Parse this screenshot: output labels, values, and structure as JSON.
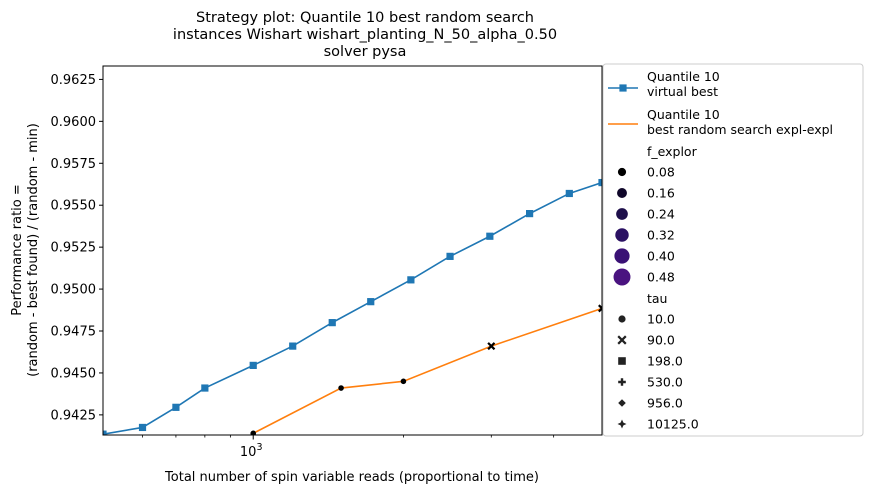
{
  "chart_data": {
    "type": "line",
    "title": [
      "Strategy plot: Quantile 10 best random search",
      "instances Wishart wishart_planting_N_50_alpha_0.50",
      "solver pysa"
    ],
    "xlabel": "Total number of spin variable reads (proportional to time)",
    "ylabel": [
      "Performance ratio =",
      "(random - best found) / (random - min)"
    ],
    "x_scale": "log",
    "xlim": [
      500,
      5000
    ],
    "ylim": [
      0.9413,
      0.9633
    ],
    "x_major_ticks": [
      {
        "value": 1000,
        "base": "10",
        "exp": "3"
      }
    ],
    "x_minor_ticks": [
      600,
      700,
      800,
      900,
      2000,
      3000,
      4000
    ],
    "y_ticks": [
      0.9425,
      0.945,
      0.9475,
      0.95,
      0.9525,
      0.955,
      0.9575,
      0.96,
      0.9625
    ],
    "y_tick_labels": [
      "0.9425",
      "0.9450",
      "0.9475",
      "0.9500",
      "0.9525",
      "0.9550",
      "0.9575",
      "0.9600",
      "0.9625"
    ],
    "series": [
      {
        "name": "Quantile 10\n virtual best",
        "color": "#1f77b4",
        "marker": "square",
        "x": [
          500,
          600,
          700,
          800,
          1000,
          1200,
          1440,
          1720,
          2070,
          2480,
          2980,
          3580,
          4300,
          5000
        ],
        "y": [
          0.94135,
          0.94175,
          0.94295,
          0.9441,
          0.94545,
          0.9466,
          0.948,
          0.94925,
          0.95055,
          0.95195,
          0.95315,
          0.9545,
          0.9557,
          0.95635
        ]
      },
      {
        "name": "Quantile 10\n best random search expl-expl",
        "color": "#ff7f0e",
        "marker": "none",
        "x": [
          1000,
          1500,
          2000,
          3000,
          5000
        ],
        "y": [
          0.9414,
          0.9441,
          0.9445,
          0.9466,
          0.94885
        ]
      }
    ],
    "scatter_points": [
      {
        "x": 1000,
        "y": 0.9414,
        "marker": "circle",
        "f_explor": 0.08
      },
      {
        "x": 1500,
        "y": 0.9441,
        "marker": "circle",
        "f_explor": 0.08
      },
      {
        "x": 2000,
        "y": 0.9445,
        "marker": "circle",
        "f_explor": 0.08
      },
      {
        "x": 3000,
        "y": 0.9466,
        "marker": "x",
        "f_explor": 0.08
      },
      {
        "x": 5000,
        "y": 0.94885,
        "marker": "x",
        "f_explor": 0.08
      }
    ],
    "legend": {
      "placement": "outside-right",
      "f_explor_title": "f_explor",
      "f_explor_entries": [
        {
          "label": "0.08",
          "color": "#000000",
          "size": 0.08
        },
        {
          "label": "0.16",
          "color": "#10072a",
          "size": 0.16
        },
        {
          "label": "0.24",
          "color": "#1e0f4a",
          "size": 0.24
        },
        {
          "label": "0.32",
          "color": "#2b1163",
          "size": 0.32
        },
        {
          "label": "0.40",
          "color": "#3a1175",
          "size": 0.4
        },
        {
          "label": "0.48",
          "color": "#4a1380",
          "size": 0.48
        }
      ],
      "tau_title": "tau",
      "tau_entries": [
        {
          "label": "10.0",
          "marker": "circle"
        },
        {
          "label": "90.0",
          "marker": "x"
        },
        {
          "label": "198.0",
          "marker": "square"
        },
        {
          "label": "530.0",
          "marker": "plus"
        },
        {
          "label": "956.0",
          "marker": "diamond"
        },
        {
          "label": "10125.0",
          "marker": "star"
        }
      ]
    }
  }
}
